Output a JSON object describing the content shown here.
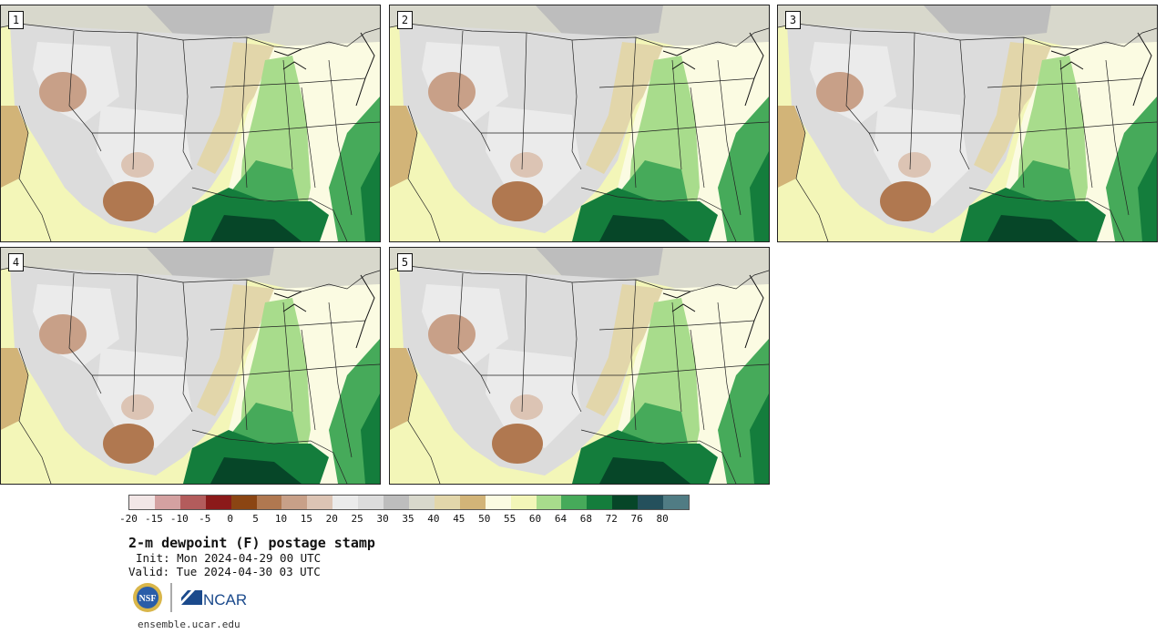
{
  "panels": [
    {
      "label": "1"
    },
    {
      "label": "2"
    },
    {
      "label": "3"
    },
    {
      "label": "4"
    },
    {
      "label": "5"
    }
  ],
  "colorbar": {
    "colors": [
      "#f2e6e6",
      "#d4a1a1",
      "#b35c5c",
      "#8b1a1a",
      "#8b4513",
      "#b07850",
      "#c8a088",
      "#dcc4b4",
      "#ebebeb",
      "#dcdcdc",
      "#bdbdbd",
      "#d8d8cc",
      "#e2d6aa",
      "#d2b478",
      "#fbfbe2",
      "#f3f6b8",
      "#a8dc8c",
      "#46aa5a",
      "#147d3c",
      "#064628",
      "#24505c",
      "#507c84"
    ],
    "ticks": [
      "-20",
      "-15",
      "-10",
      "-5",
      "0",
      "5",
      "10",
      "15",
      "20",
      "25",
      "30",
      "35",
      "40",
      "45",
      "50",
      "55",
      "60",
      "64",
      "68",
      "72",
      "76",
      "80"
    ]
  },
  "title": "2-m dewpoint (F) postage stamp",
  "init": "Init: Mon 2024-04-29 00 UTC",
  "valid": "Valid: Tue 2024-04-30 03 UTC",
  "logos": {
    "nsf": "NSF",
    "ncar": "NCAR"
  },
  "website": "ensemble.ucar.edu"
}
